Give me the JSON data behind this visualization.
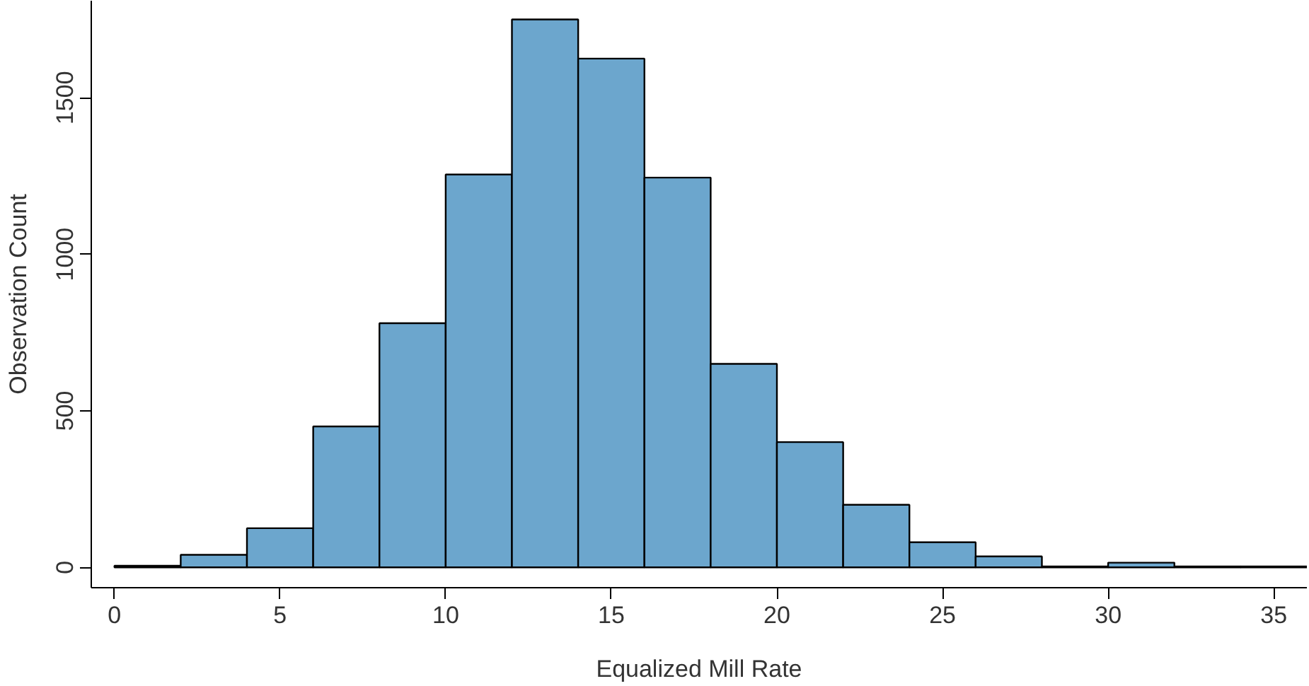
{
  "chart_data": {
    "type": "histogram",
    "xlabel": "Equalized Mill Rate",
    "ylabel": "Observation Count",
    "bins": [
      0,
      2,
      4,
      6,
      8,
      10,
      12,
      14,
      16,
      18,
      20,
      22,
      24,
      26,
      28,
      30,
      32,
      34,
      36
    ],
    "values": [
      5,
      40,
      125,
      450,
      780,
      1255,
      1750,
      1625,
      1245,
      650,
      400,
      200,
      80,
      35,
      3,
      15,
      3,
      3
    ],
    "color": "#6ca6cd",
    "xlim": [
      -0.7,
      36
    ],
    "ylim": [
      -65,
      1810
    ],
    "xticks": [
      0,
      5,
      10,
      15,
      20,
      25,
      30,
      35
    ],
    "yticks": [
      0,
      500,
      1000,
      1500
    ],
    "grid": false
  }
}
